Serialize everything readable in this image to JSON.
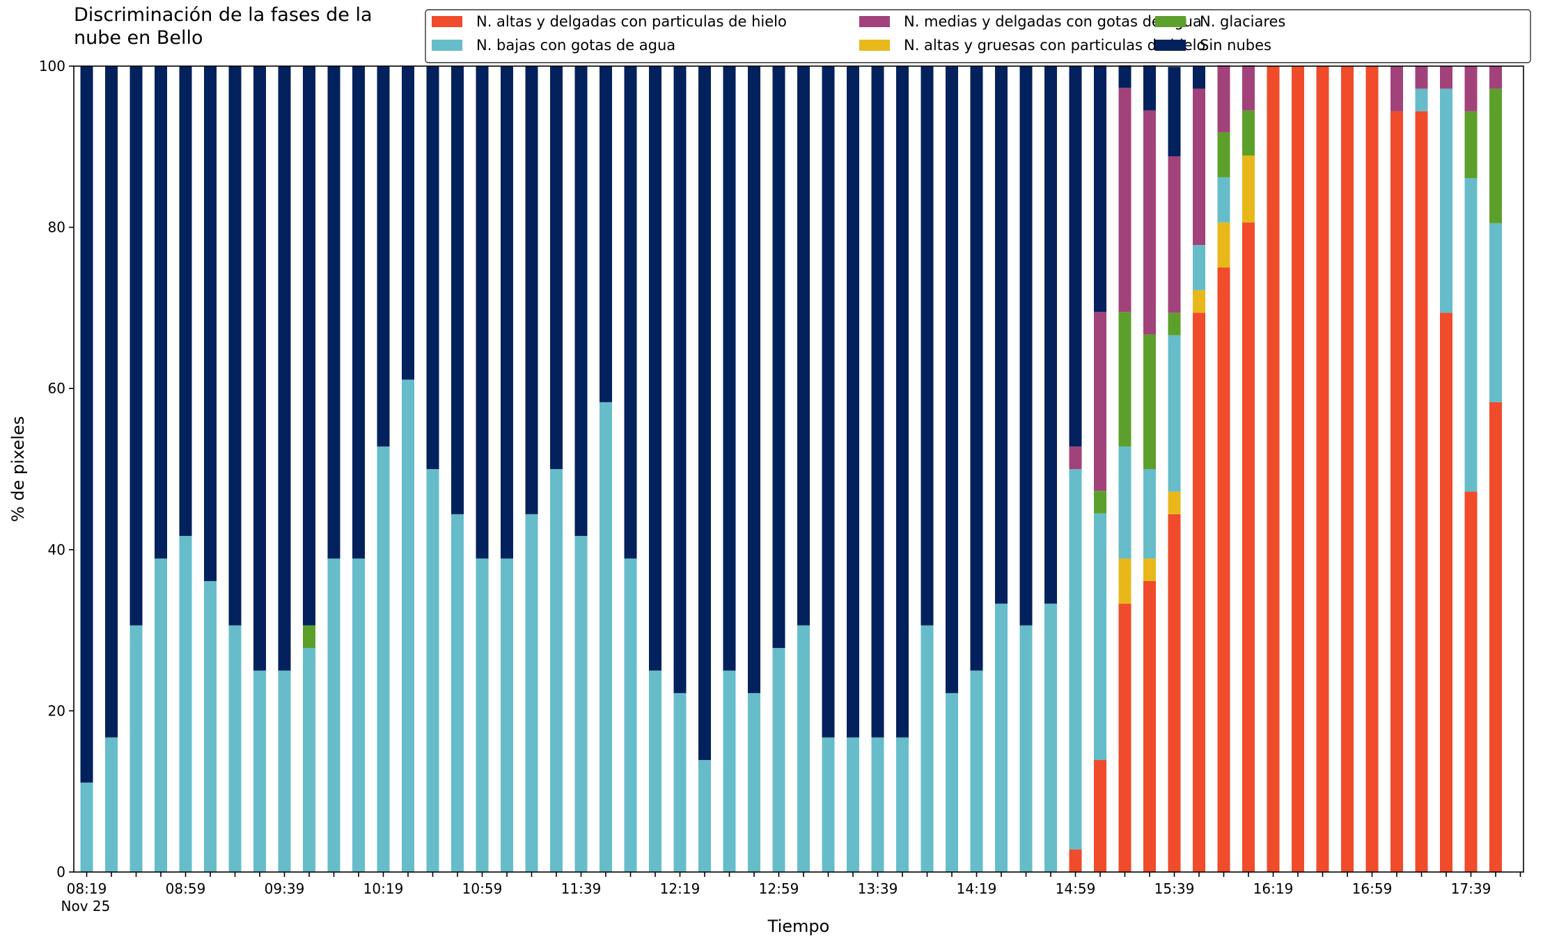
{
  "chart_data": {
    "type": "bar",
    "stacked": true,
    "title": "Discriminación de la fases de la\nnube en Bello",
    "xlabel": "Tiempo",
    "ylabel": "% de pixeles",
    "ylim": [
      0,
      100
    ],
    "yticks": [
      0,
      20,
      40,
      60,
      80,
      100
    ],
    "grid": false,
    "legend_position": "top-right",
    "x_tick_labels": [
      "08:19\nNov 25",
      "08:59",
      "09:39",
      "10:19",
      "10:59",
      "11:39",
      "12:19",
      "12:59",
      "13:39",
      "14:19",
      "14:59",
      "15:39",
      "16:19",
      "16:59",
      "17:39"
    ],
    "x_tick_step": 4,
    "categories": [
      "08:19",
      "08:29",
      "08:39",
      "08:49",
      "08:59",
      "09:09",
      "09:19",
      "09:29",
      "09:39",
      "09:49",
      "09:59",
      "10:09",
      "10:19",
      "10:29",
      "10:39",
      "10:49",
      "10:59",
      "11:09",
      "11:19",
      "11:29",
      "11:39",
      "11:49",
      "11:59",
      "12:09",
      "12:19",
      "12:29",
      "12:39",
      "12:49",
      "12:59",
      "13:09",
      "13:19",
      "13:29",
      "13:39",
      "13:49",
      "13:59",
      "14:09",
      "14:19",
      "14:29",
      "14:39",
      "14:49",
      "14:59",
      "15:09",
      "15:19",
      "15:29",
      "15:39",
      "15:49",
      "15:59",
      "16:09",
      "16:19",
      "16:29",
      "16:39",
      "16:49",
      "16:59",
      "17:09",
      "17:19",
      "17:29",
      "17:39",
      "17:49"
    ],
    "series": [
      {
        "name": "N. altas y delgadas con particulas de hielo",
        "color": "#f04b2b",
        "values": [
          0,
          0,
          0,
          0,
          0,
          0,
          0,
          0,
          0,
          0,
          0,
          0,
          0,
          0,
          0,
          0,
          0,
          0,
          0,
          0,
          0,
          0,
          0,
          0,
          0,
          0,
          0,
          0,
          0,
          0,
          0,
          0,
          0,
          0,
          0,
          0,
          0,
          0,
          0,
          0,
          2.8,
          13.9,
          33.3,
          36.1,
          44.4,
          69.4,
          75,
          80.6,
          100,
          100,
          100,
          100,
          100,
          94.4,
          94.4,
          69.4,
          47.2,
          58.3
        ]
      },
      {
        "name": "N. altas y gruesas con particulas de hielo",
        "color": "#e8b81b",
        "values": [
          0,
          0,
          0,
          0,
          0,
          0,
          0,
          0,
          0,
          0,
          0,
          0,
          0,
          0,
          0,
          0,
          0,
          0,
          0,
          0,
          0,
          0,
          0,
          0,
          0,
          0,
          0,
          0,
          0,
          0,
          0,
          0,
          0,
          0,
          0,
          0,
          0,
          0,
          0,
          0,
          0,
          0,
          5.6,
          2.8,
          2.8,
          2.8,
          5.6,
          8.3,
          0,
          0,
          0,
          0,
          0,
          0,
          0,
          0,
          0,
          0
        ]
      },
      {
        "name": "N. bajas con gotas de agua",
        "color": "#66bdc9",
        "values": [
          11.1,
          16.7,
          30.6,
          38.9,
          41.7,
          36.1,
          30.6,
          25,
          25,
          27.8,
          38.9,
          38.9,
          52.8,
          61.1,
          50,
          44.4,
          38.9,
          38.9,
          44.4,
          50,
          41.7,
          58.3,
          38.9,
          25,
          22.2,
          13.9,
          25,
          22.2,
          27.8,
          30.6,
          16.7,
          16.7,
          16.7,
          16.7,
          30.6,
          22.2,
          25,
          33.3,
          30.6,
          33.3,
          47.2,
          30.6,
          13.9,
          11.1,
          19.4,
          5.6,
          5.6,
          0,
          0,
          0,
          0,
          0,
          0,
          0,
          2.8,
          27.8,
          38.9,
          22.2
        ]
      },
      {
        "name": "N. glaciares",
        "color": "#5d9f2b",
        "values": [
          0,
          0,
          0,
          0,
          0,
          0,
          0,
          0,
          0,
          2.8,
          0,
          0,
          0,
          0,
          0,
          0,
          0,
          0,
          0,
          0,
          0,
          0,
          0,
          0,
          0,
          0,
          0,
          0,
          0,
          0,
          0,
          0,
          0,
          0,
          0,
          0,
          0,
          0,
          0,
          0,
          0,
          2.8,
          16.7,
          16.7,
          2.8,
          0,
          5.6,
          5.6,
          0,
          0,
          0,
          0,
          0,
          0,
          0,
          0,
          8.3,
          16.7
        ]
      },
      {
        "name": "N. medias y delgadas con gotas de agua",
        "color": "#a2427a",
        "values": [
          0,
          0,
          0,
          0,
          0,
          0,
          0,
          0,
          0,
          0,
          0,
          0,
          0,
          0,
          0,
          0,
          0,
          0,
          0,
          0,
          0,
          0,
          0,
          0,
          0,
          0,
          0,
          0,
          0,
          0,
          0,
          0,
          0,
          0,
          0,
          0,
          0,
          0,
          0,
          0,
          2.8,
          22.2,
          27.8,
          27.8,
          19.4,
          19.4,
          8.3,
          5.6,
          0,
          0,
          0,
          0,
          0,
          5.6,
          2.8,
          2.8,
          5.6,
          2.8
        ]
      },
      {
        "name": "Sin nubes",
        "color": "#03215c",
        "values": [
          88.9,
          83.3,
          69.4,
          61.1,
          58.3,
          63.9,
          69.4,
          75,
          75,
          69.4,
          61.1,
          61.1,
          47.2,
          38.9,
          50,
          55.6,
          61.1,
          61.1,
          55.6,
          50,
          58.3,
          41.7,
          61.1,
          75,
          77.8,
          86.1,
          75,
          77.8,
          72.2,
          69.4,
          83.3,
          83.3,
          83.3,
          83.3,
          69.4,
          77.8,
          75,
          66.7,
          69.4,
          66.7,
          47.2,
          30.6,
          2.8,
          5.6,
          11.1,
          2.8,
          0,
          0,
          0,
          0,
          0,
          0,
          0,
          0,
          0,
          0,
          0,
          0
        ]
      }
    ]
  },
  "legend_order": [
    0,
    2,
    4,
    1,
    3,
    5
  ]
}
